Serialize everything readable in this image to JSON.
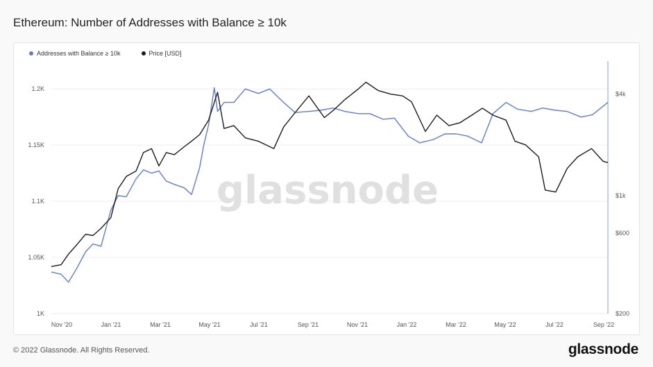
{
  "header": {
    "title": "Ethereum: Number of Addresses with Balance ≥ 10k"
  },
  "footer": {
    "copyright": "© 2022 Glassnode. All Rights Reserved.",
    "logo": "glassnode"
  },
  "watermark": "glassnode",
  "colors": {
    "addresses": "#5b7bdc",
    "price": "#1a1a1a",
    "grid": "#eeeeee",
    "axis": "#7f9de0"
  },
  "chart_data": {
    "type": "line",
    "title": "Ethereum: Number of Addresses with Balance ≥ 10k",
    "legend_position": "top-left",
    "grid": true,
    "x_ticks": [
      "Nov '20",
      "Jan '21",
      "Mar '21",
      "May '21",
      "Jul '21",
      "Sep '21",
      "Nov '21",
      "Jan '22",
      "Mar '22",
      "May '22",
      "Jul '22",
      "Sep '22"
    ],
    "x_range": [
      "2020-10-20",
      "2022-09-03"
    ],
    "y_left": {
      "ticks": [
        "1K",
        "1.05K",
        "1.1K",
        "1.15K",
        "1.2K"
      ],
      "tick_values": [
        1000,
        1050,
        1100,
        1150,
        1200
      ],
      "range": [
        1000,
        1210
      ]
    },
    "y_right": {
      "scale": "log",
      "ticks": [
        "$200",
        "$600",
        "$1k",
        "$4k"
      ],
      "tick_values": [
        200,
        600,
        1000,
        4000
      ],
      "range": [
        200,
        5000
      ]
    },
    "series": [
      {
        "name": "Addresses with Balance ≥ 10k",
        "axis": "left",
        "x": [
          "2020-10-20",
          "2020-11-01",
          "2020-11-10",
          "2020-11-20",
          "2020-12-01",
          "2020-12-10",
          "2020-12-20",
          "2021-01-01",
          "2021-01-10",
          "2021-01-20",
          "2021-02-01",
          "2021-02-10",
          "2021-02-20",
          "2021-03-01",
          "2021-03-10",
          "2021-03-20",
          "2021-04-01",
          "2021-04-10",
          "2021-04-20",
          "2021-04-25",
          "2021-05-01",
          "2021-05-08",
          "2021-05-12",
          "2021-05-20",
          "2021-06-01",
          "2021-06-15",
          "2021-07-01",
          "2021-07-15",
          "2021-08-01",
          "2021-08-15",
          "2021-09-01",
          "2021-09-15",
          "2021-10-01",
          "2021-10-15",
          "2021-11-01",
          "2021-11-15",
          "2021-12-01",
          "2021-12-15",
          "2022-01-01",
          "2022-01-15",
          "2022-02-01",
          "2022-02-15",
          "2022-03-01",
          "2022-03-15",
          "2022-04-01",
          "2022-04-15",
          "2022-05-01",
          "2022-05-15",
          "2022-06-01",
          "2022-06-15",
          "2022-07-01",
          "2022-07-15",
          "2022-08-01",
          "2022-08-15",
          "2022-09-03"
        ],
        "values": [
          1037,
          1035,
          1028,
          1040,
          1055,
          1062,
          1060,
          1092,
          1105,
          1104,
          1120,
          1128,
          1125,
          1127,
          1118,
          1115,
          1112,
          1106,
          1130,
          1150,
          1168,
          1201,
          1180,
          1188,
          1188,
          1200,
          1196,
          1200,
          1188,
          1179,
          1180,
          1181,
          1183,
          1180,
          1178,
          1178,
          1173,
          1174,
          1158,
          1152,
          1155,
          1160,
          1160,
          1158,
          1152,
          1178,
          1188,
          1182,
          1180,
          1183,
          1181,
          1180,
          1175,
          1177,
          1188
        ]
      },
      {
        "name": "Price [USD]",
        "axis": "right",
        "x": [
          "2020-10-20",
          "2020-11-01",
          "2020-11-10",
          "2020-11-20",
          "2020-12-01",
          "2020-12-10",
          "2020-12-20",
          "2021-01-01",
          "2021-01-10",
          "2021-01-20",
          "2021-02-01",
          "2021-02-10",
          "2021-02-20",
          "2021-03-01",
          "2021-03-10",
          "2021-03-20",
          "2021-04-01",
          "2021-04-10",
          "2021-04-20",
          "2021-05-01",
          "2021-05-12",
          "2021-05-20",
          "2021-06-01",
          "2021-06-15",
          "2021-07-01",
          "2021-07-20",
          "2021-08-01",
          "2021-08-15",
          "2021-09-01",
          "2021-09-20",
          "2021-10-01",
          "2021-10-15",
          "2021-11-01",
          "2021-11-10",
          "2021-11-25",
          "2021-12-10",
          "2021-12-25",
          "2022-01-05",
          "2022-01-22",
          "2022-02-05",
          "2022-02-20",
          "2022-03-05",
          "2022-03-20",
          "2022-04-02",
          "2022-04-15",
          "2022-05-01",
          "2022-05-12",
          "2022-05-25",
          "2022-06-10",
          "2022-06-18",
          "2022-07-01",
          "2022-07-15",
          "2022-07-28",
          "2022-08-14",
          "2022-08-28",
          "2022-09-03"
        ],
        "values": [
          380,
          390,
          450,
          510,
          590,
          580,
          640,
          740,
          1100,
          1300,
          1400,
          1800,
          1900,
          1500,
          1800,
          1750,
          1950,
          2100,
          2300,
          2800,
          4100,
          2500,
          2600,
          2200,
          2100,
          1900,
          2550,
          3100,
          3900,
          2900,
          3200,
          3700,
          4300,
          4700,
          4200,
          4000,
          3900,
          3600,
          2400,
          3000,
          2600,
          2700,
          3000,
          3300,
          3000,
          2800,
          2100,
          2000,
          1700,
          1080,
          1050,
          1450,
          1700,
          1900,
          1600,
          1570
        ]
      }
    ]
  }
}
